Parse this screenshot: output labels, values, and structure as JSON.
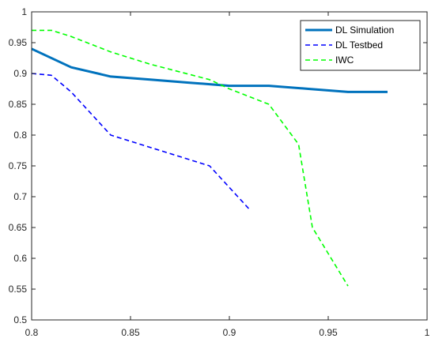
{
  "chart_data": {
    "type": "line",
    "title": "",
    "xlabel": "",
    "ylabel": "",
    "xlim": [
      0.8,
      1.0
    ],
    "ylim": [
      0.5,
      1.0
    ],
    "x_ticks": [
      0.8,
      0.85,
      0.9,
      0.95,
      1.0
    ],
    "x_tick_labels": [
      "0.8",
      "0.85",
      "0.9",
      "0.95",
      "1"
    ],
    "y_ticks": [
      0.5,
      0.55,
      0.6,
      0.65,
      0.7,
      0.75,
      0.8,
      0.85,
      0.9,
      0.95,
      1.0
    ],
    "y_tick_labels": [
      "0.5",
      "0.55",
      "0.6",
      "0.65",
      "0.7",
      "0.75",
      "0.8",
      "0.85",
      "0.9",
      "0.95",
      "1"
    ],
    "grid": false,
    "legend_position": "top-right",
    "series": [
      {
        "name": "DL Simulation",
        "color": "#0072BD",
        "style": "solid",
        "x": [
          0.8,
          0.82,
          0.84,
          0.86,
          0.88,
          0.9,
          0.92,
          0.94,
          0.96,
          0.98
        ],
        "y": [
          0.94,
          0.91,
          0.895,
          0.89,
          0.885,
          0.88,
          0.88,
          0.875,
          0.87,
          0.87
        ]
      },
      {
        "name": "DL Testbed",
        "color": "#0000FF",
        "style": "dashed",
        "x": [
          0.8,
          0.81,
          0.82,
          0.84,
          0.86,
          0.89,
          0.91
        ],
        "y": [
          0.9,
          0.897,
          0.87,
          0.8,
          0.78,
          0.75,
          0.68
        ]
      },
      {
        "name": "IWC",
        "color": "#00FF00",
        "style": "dashed",
        "x": [
          0.8,
          0.81,
          0.82,
          0.84,
          0.86,
          0.89,
          0.9,
          0.92,
          0.935,
          0.942,
          0.96
        ],
        "y": [
          0.97,
          0.97,
          0.96,
          0.935,
          0.915,
          0.89,
          0.875,
          0.85,
          0.785,
          0.65,
          0.555
        ]
      }
    ]
  }
}
